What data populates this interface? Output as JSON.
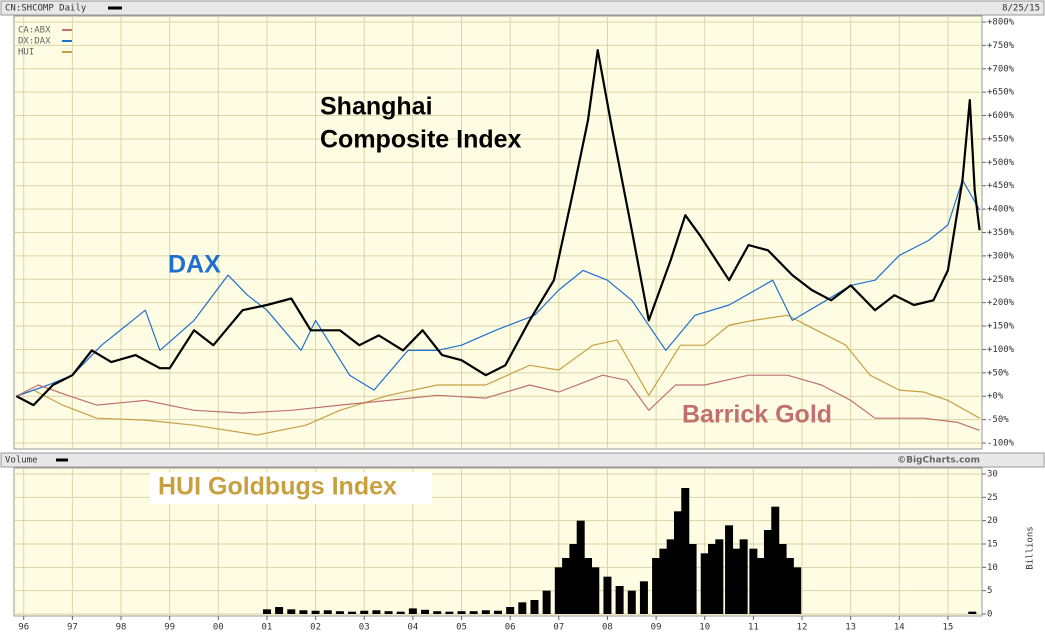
{
  "chart_data": [
    {
      "type": "line",
      "title": "CN:SHCOMP Daily",
      "date": "8/25/15",
      "source": "©BigCharts.com",
      "xlim": [
        1995.8,
        2015.7
      ],
      "ylim": [
        -100,
        800
      ],
      "yticks": [
        {
          "value": 800,
          "label": "+800%"
        },
        {
          "value": 750,
          "label": "+750%"
        },
        {
          "value": 700,
          "label": "+700%"
        },
        {
          "value": 650,
          "label": "+650%"
        },
        {
          "value": 600,
          "label": "+600%"
        },
        {
          "value": 550,
          "label": "+550%"
        },
        {
          "value": 500,
          "label": "+500%"
        },
        {
          "value": 450,
          "label": "+450%"
        },
        {
          "value": 400,
          "label": "+400%"
        },
        {
          "value": 350,
          "label": "+350%"
        },
        {
          "value": 300,
          "label": "+300%"
        },
        {
          "value": 250,
          "label": "+250%"
        },
        {
          "value": 200,
          "label": "+200%"
        },
        {
          "value": 150,
          "label": "+150%"
        },
        {
          "value": 100,
          "label": "+100%"
        },
        {
          "value": 50,
          "label": "+50%"
        },
        {
          "value": 0,
          "label": "+0%"
        },
        {
          "value": -50,
          "label": "-50%"
        },
        {
          "value": -100,
          "label": "-100%"
        }
      ],
      "grid": true,
      "series": [
        {
          "name": "CN:SHCOMP Daily",
          "color": "#000000",
          "x": [
            1995.85,
            1996.2,
            1996.6,
            1997.0,
            1997.4,
            1997.8,
            1998.3,
            1998.8,
            1999.0,
            1999.5,
            1999.9,
            2000.5,
            2001.0,
            2001.5,
            2001.9,
            2002.5,
            2002.9,
            2003.3,
            2003.8,
            2004.2,
            2004.6,
            2005.0,
            2005.5,
            2005.9,
            2006.4,
            2006.9,
            2007.3,
            2007.6,
            2007.8,
            2008.1,
            2008.5,
            2008.85,
            2009.3,
            2009.6,
            2009.9,
            2010.5,
            2010.9,
            2011.3,
            2011.8,
            2012.2,
            2012.6,
            2013.0,
            2013.5,
            2013.9,
            2014.3,
            2014.7,
            2015.0,
            2015.3,
            2015.45,
            2015.55,
            2015.65
          ],
          "values": [
            0,
            -19,
            24,
            45,
            98,
            73,
            88,
            60,
            60,
            141,
            109,
            184,
            195,
            209,
            141,
            141,
            109,
            130,
            98,
            141,
            88,
            77,
            45,
            66,
            162,
            248,
            440,
            590,
            740,
            569,
            355,
            162,
            291,
            387,
            344,
            248,
            323,
            312,
            259,
            227,
            205,
            237,
            184,
            216,
            195,
            205,
            269,
            462,
            633,
            440,
            355
          ]
        },
        {
          "name": "CA:ABX",
          "color": "#c07070",
          "x": [
            1995.85,
            1996.3,
            1996.9,
            1997.5,
            1998.5,
            1999.5,
            2000.5,
            2001.5,
            2002.5,
            2003.5,
            2004.5,
            2005.5,
            2006.4,
            2007.0,
            2007.9,
            2008.4,
            2008.85,
            2009.4,
            2010.0,
            2010.9,
            2011.7,
            2012.4,
            2013.0,
            2013.5,
            2014.5,
            2015.2,
            2015.65
          ],
          "values": [
            0,
            24,
            2,
            -19,
            -9,
            -30,
            -36,
            -30,
            -19,
            -9,
            2,
            -4,
            24,
            9,
            45,
            34,
            -30,
            24,
            24,
            45,
            45,
            24,
            -9,
            -47,
            -47,
            -56,
            -73
          ]
        },
        {
          "name": "DX:DAX",
          "color": "#1f6fd0",
          "x": [
            1995.85,
            1996.5,
            1997.0,
            1997.6,
            1998.5,
            1998.8,
            1999.5,
            2000.2,
            2000.6,
            2001.0,
            2001.7,
            2002.0,
            2002.7,
            2003.2,
            2003.9,
            2004.5,
            2005.0,
            2005.7,
            2006.5,
            2007.0,
            2007.5,
            2008.0,
            2008.5,
            2009.2,
            2009.8,
            2010.5,
            2011.4,
            2011.8,
            2012.5,
            2013.0,
            2013.5,
            2014.0,
            2014.6,
            2015.0,
            2015.3,
            2015.65
          ],
          "values": [
            0,
            24,
            45,
            109,
            184,
            98,
            162,
            259,
            216,
            184,
            98,
            162,
            45,
            13,
            98,
            98,
            109,
            141,
            173,
            227,
            269,
            248,
            205,
            98,
            173,
            195,
            248,
            162,
            205,
            237,
            248,
            301,
            333,
            366,
            462,
            398
          ]
        },
        {
          "name": "HUI",
          "color": "#c8a040",
          "x": [
            1995.85,
            1996.2,
            1996.8,
            1997.5,
            1998.5,
            1999.5,
            2000.8,
            2001.8,
            2002.5,
            2003.5,
            2004.5,
            2005.5,
            2006.4,
            2007.0,
            2007.7,
            2008.2,
            2008.85,
            2009.5,
            2010.0,
            2010.5,
            2011.0,
            2011.7,
            2012.3,
            2012.9,
            2013.4,
            2014.0,
            2014.5,
            2015.0,
            2015.65
          ],
          "values": [
            0,
            13,
            -19,
            -47,
            -51,
            -62,
            -83,
            -62,
            -30,
            2,
            24,
            24,
            66,
            56,
            109,
            120,
            2,
            109,
            109,
            152,
            162,
            173,
            141,
            109,
            45,
            13,
            9,
            -9,
            -47
          ]
        }
      ],
      "annotations": [
        {
          "text": "Shanghai",
          "color": "#000000"
        },
        {
          "text": "Composite Index",
          "color": "#000000"
        },
        {
          "text": "DAX",
          "color": "#1f6fd0"
        },
        {
          "text": "Barrick Gold",
          "color": "#c07070"
        },
        {
          "text": "HUI Goldbugs Index",
          "color": "#c8a040"
        }
      ]
    },
    {
      "type": "bar",
      "title": "Volume",
      "y_label": "Billions",
      "color": "#000000",
      "xlim": [
        1995.8,
        2015.7
      ],
      "xticks": [
        {
          "value": 1996,
          "label": "96"
        },
        {
          "value": 1997,
          "label": "97"
        },
        {
          "value": 1998,
          "label": "98"
        },
        {
          "value": 1999,
          "label": "99"
        },
        {
          "value": 2000,
          "label": "00"
        },
        {
          "value": 2001,
          "label": "01"
        },
        {
          "value": 2002,
          "label": "02"
        },
        {
          "value": 2003,
          "label": "03"
        },
        {
          "value": 2004,
          "label": "04"
        },
        {
          "value": 2005,
          "label": "05"
        },
        {
          "value": 2006,
          "label": "06"
        },
        {
          "value": 2007,
          "label": "07"
        },
        {
          "value": 2008,
          "label": "08"
        },
        {
          "value": 2009,
          "label": "09"
        },
        {
          "value": 2010,
          "label": "10"
        },
        {
          "value": 2011,
          "label": "11"
        },
        {
          "value": 2012,
          "label": "12"
        },
        {
          "value": 2013,
          "label": "13"
        },
        {
          "value": 2014,
          "label": "14"
        },
        {
          "value": 2015,
          "label": "15"
        }
      ],
      "ylim": [
        0,
        30
      ],
      "yticks": [
        0,
        5,
        10,
        15,
        20,
        25,
        30
      ],
      "grid": true,
      "x": [
        2001.0,
        2001.25,
        2001.5,
        2001.75,
        2002.0,
        2002.25,
        2002.5,
        2002.75,
        2003.0,
        2003.25,
        2003.5,
        2003.75,
        2004.0,
        2004.25,
        2004.5,
        2004.75,
        2005.0,
        2005.25,
        2005.5,
        2005.75,
        2006.0,
        2006.25,
        2006.5,
        2006.75,
        2007.0,
        2007.15,
        2007.3,
        2007.45,
        2007.6,
        2007.75,
        2008.0,
        2008.25,
        2008.5,
        2008.75,
        2009.0,
        2009.15,
        2009.3,
        2009.45,
        2009.6,
        2009.75,
        2010.0,
        2010.15,
        2010.3,
        2010.5,
        2010.65,
        2010.8,
        2011.0,
        2011.15,
        2011.3,
        2011.45,
        2011.6,
        2011.75,
        2011.9,
        2015.5
      ],
      "values": [
        1,
        1.5,
        1,
        0.8,
        0.7,
        0.8,
        0.6,
        0.5,
        0.7,
        0.8,
        0.6,
        0.5,
        1.2,
        0.9,
        0.6,
        0.5,
        0.6,
        0.6,
        0.8,
        0.7,
        1.5,
        2.5,
        3,
        5,
        10,
        12,
        15,
        20,
        12,
        10,
        8,
        6,
        5,
        7,
        12,
        14,
        16,
        22,
        27,
        15,
        13,
        15,
        16,
        19,
        14,
        16,
        14,
        12,
        18,
        23,
        15,
        12,
        10,
        0.5
      ]
    }
  ]
}
